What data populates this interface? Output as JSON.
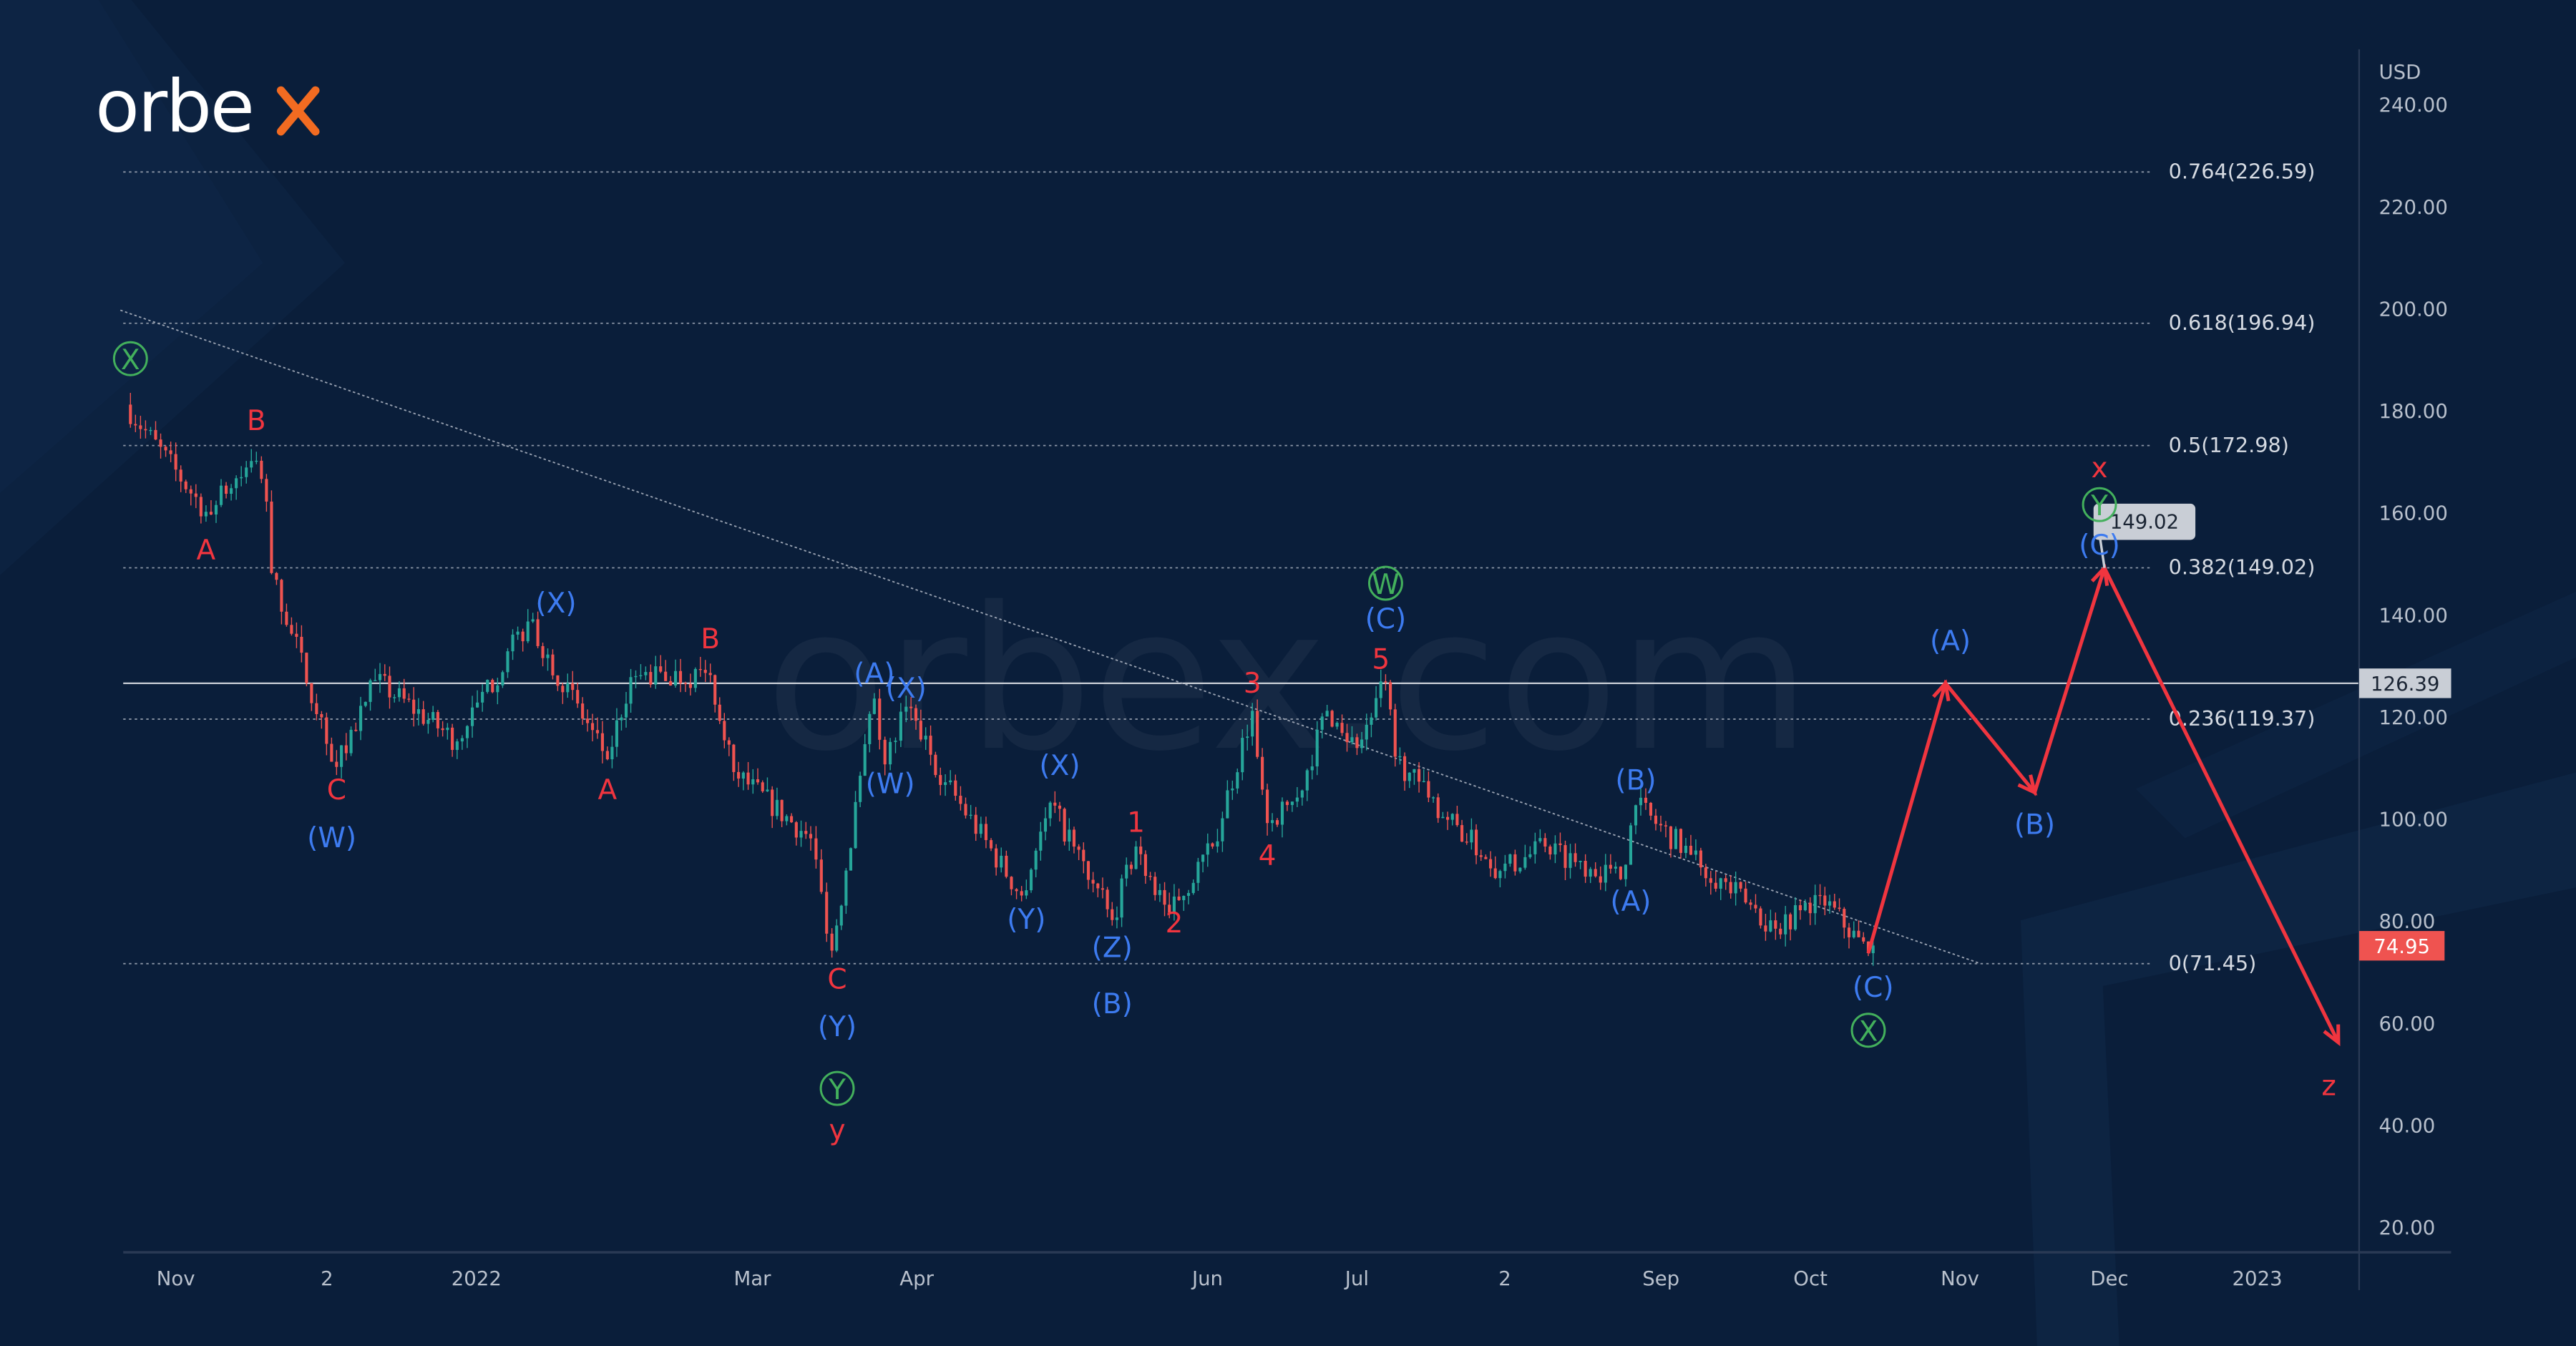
{
  "brand": {
    "logo_text": "orbex",
    "watermark": "orbex.com",
    "accent": "#f26b21"
  },
  "colors": {
    "background": "#0a1e3a",
    "red": "#f0353f",
    "blue": "#3d7bf0",
    "green": "#43b05c",
    "candle_up": "#26a69a",
    "candle_down": "#ef5350",
    "forecast": "#f0353f"
  },
  "chart_data": {
    "type": "candlestick",
    "currency_label": "USD",
    "ylim": [
      10,
      250
    ],
    "y_ticks": [
      "240.00",
      "220.00",
      "200.00",
      "180.00",
      "160.00",
      "140.00",
      "120.00",
      "100.00",
      "80.00",
      "60.00",
      "40.00",
      "20.00"
    ],
    "x_ticks": [
      {
        "label": "Nov",
        "date": "2021-11-01"
      },
      {
        "label": "2",
        "date": "2021-12-01"
      },
      {
        "label": "2022",
        "date": "2022-01-01"
      },
      {
        "label": "Mar",
        "date": "2022-03-01"
      },
      {
        "label": "Apr",
        "date": "2022-04-01"
      },
      {
        "label": "Jun",
        "date": "2022-06-01"
      },
      {
        "label": "Jul",
        "date": "2022-07-01"
      },
      {
        "label": "2",
        "date": "2022-08-01"
      },
      {
        "label": "Sep",
        "date": "2022-09-01"
      },
      {
        "label": "Oct",
        "date": "2022-10-01"
      },
      {
        "label": "Nov",
        "date": "2022-11-01"
      },
      {
        "label": "Dec",
        "date": "2022-12-01"
      },
      {
        "label": "2023",
        "date": "2023-01-01"
      }
    ],
    "price_pivots": [
      [
        "2021-10-22",
        181
      ],
      [
        "2021-11-07",
        160
      ],
      [
        "2021-11-17",
        170
      ],
      [
        "2021-11-19",
        162
      ],
      [
        "2021-11-20",
        148
      ],
      [
        "2021-12-03",
        110
      ],
      [
        "2021-12-11",
        127
      ],
      [
        "2021-12-28",
        115
      ],
      [
        "2022-01-12",
        138.5
      ],
      [
        "2022-01-29",
        111.5
      ],
      [
        "2022-02-03",
        127.6
      ],
      [
        "2022-02-20",
        128
      ],
      [
        "2022-02-25",
        109
      ],
      [
        "2022-03-12",
        96
      ],
      [
        "2022-03-16",
        74
      ],
      [
        "2022-03-24",
        123.4
      ],
      [
        "2022-03-26",
        110.5
      ],
      [
        "2022-03-30",
        121.8
      ],
      [
        "2022-04-07",
        107
      ],
      [
        "2022-04-23",
        84.8
      ],
      [
        "2022-04-29",
        103
      ],
      [
        "2022-05-12",
        80
      ],
      [
        "2022-05-17",
        94.4
      ],
      [
        "2022-05-24",
        81.5
      ],
      [
        "2022-06-02",
        94.4
      ],
      [
        "2022-06-10",
        121
      ],
      [
        "2022-06-13",
        99
      ],
      [
        "2022-06-19",
        104
      ],
      [
        "2022-06-25",
        121
      ],
      [
        "2022-07-01",
        113.7
      ],
      [
        "2022-07-07",
        126.6
      ],
      [
        "2022-07-09",
        112
      ],
      [
        "2022-07-16",
        104
      ],
      [
        "2022-07-31",
        89.6
      ],
      [
        "2022-08-09",
        94.4
      ],
      [
        "2022-08-24",
        88
      ],
      [
        "2022-08-27",
        102.5
      ],
      [
        "2022-09-07",
        92.8
      ],
      [
        "2022-09-24",
        78.3
      ],
      [
        "2022-10-03",
        84.8
      ],
      [
        "2022-10-13",
        73.5
      ],
      [
        "2022-10-14",
        75
      ]
    ],
    "fib_levels": [
      {
        "label": "0.764(226.59)",
        "value": 226.59
      },
      {
        "label": "0.618(196.94)",
        "value": 196.94
      },
      {
        "label": "0.5(172.98)",
        "value": 172.98
      },
      {
        "label": "0.382(149.02)",
        "value": 149.02
      },
      {
        "label": "0.236(119.37)",
        "value": 119.37
      },
      {
        "label": "0(71.45)",
        "value": 71.45
      }
    ],
    "horizontal_line": {
      "value": 126.39,
      "label": "126.39"
    },
    "current_price": {
      "value": 74.95,
      "label": "74.95"
    },
    "target_label": {
      "value": 149.02,
      "label": "149.02",
      "date": "2022-12-08"
    },
    "trendline": [
      [
        "2021-10-21",
        199.5
      ],
      [
        "2022-11-05",
        71.5
      ]
    ],
    "forecast_path": [
      [
        "2022-10-13",
        73.5
      ],
      [
        "2022-10-29",
        126.4
      ],
      [
        "2022-11-16",
        105
      ],
      [
        "2022-11-30",
        149
      ],
      [
        "2023-01-18",
        56
      ]
    ],
    "wave_labels": [
      {
        "text": "X",
        "style": "green",
        "date": "2021-10-23",
        "price": 190
      },
      {
        "text": "B",
        "style": "red",
        "date": "2021-11-17",
        "price": 177.8
      },
      {
        "text": "A",
        "style": "red",
        "date": "2021-11-07",
        "price": 152.4
      },
      {
        "text": "C",
        "style": "red",
        "date": "2021-12-03",
        "price": 105.4
      },
      {
        "text": "(W)",
        "style": "blue",
        "date": "2021-12-02",
        "price": 96
      },
      {
        "text": "(X)",
        "style": "blue",
        "date": "2022-01-18",
        "price": 142
      },
      {
        "text": "A",
        "style": "red",
        "date": "2022-01-29",
        "price": 105.4
      },
      {
        "text": "B",
        "style": "red",
        "date": "2022-02-20",
        "price": 135
      },
      {
        "text": "(A)",
        "style": "blue",
        "date": "2022-03-24",
        "price": 128.2
      },
      {
        "text": "(X)",
        "style": "blue",
        "date": "2022-03-30",
        "price": 125.3
      },
      {
        "text": "(W)",
        "style": "blue",
        "date": "2022-03-27",
        "price": 106.6
      },
      {
        "text": "C",
        "style": "red",
        "date": "2022-03-17",
        "price": 68.3
      },
      {
        "text": "(Y)",
        "style": "blue",
        "date": "2022-03-17",
        "price": 59
      },
      {
        "text": "Y",
        "style": "green",
        "date": "2022-03-17",
        "price": 47
      },
      {
        "text": "y",
        "style": "red",
        "date": "2022-03-17",
        "price": 38.7
      },
      {
        "text": "(X)",
        "style": "blue",
        "date": "2022-05-01",
        "price": 110.2
      },
      {
        "text": "(Y)",
        "style": "blue",
        "date": "2022-04-24",
        "price": 80
      },
      {
        "text": "(Z)",
        "style": "blue",
        "date": "2022-05-12",
        "price": 74.5
      },
      {
        "text": "(B)",
        "style": "blue",
        "date": "2022-05-12",
        "price": 63.5
      },
      {
        "text": "1",
        "style": "red",
        "date": "2022-05-17",
        "price": 99
      },
      {
        "text": "2",
        "style": "red",
        "date": "2022-05-25",
        "price": 79.3
      },
      {
        "text": "3",
        "style": "red",
        "date": "2022-06-10",
        "price": 126.3
      },
      {
        "text": "4",
        "style": "red",
        "date": "2022-06-13",
        "price": 92.5
      },
      {
        "text": "5",
        "style": "red",
        "date": "2022-07-06",
        "price": 131
      },
      {
        "text": "(C)",
        "style": "blue",
        "date": "2022-07-07",
        "price": 138.9
      },
      {
        "text": "W",
        "style": "green",
        "date": "2022-07-07",
        "price": 146
      },
      {
        "text": "(B)",
        "style": "blue",
        "date": "2022-08-27",
        "price": 107.3
      },
      {
        "text": "(A)",
        "style": "blue",
        "date": "2022-08-26",
        "price": 83.5
      },
      {
        "text": "(C)",
        "style": "blue",
        "date": "2022-10-14",
        "price": 66.7
      },
      {
        "text": "X",
        "style": "green",
        "date": "2022-10-13",
        "price": 58.4
      },
      {
        "text": "(A)",
        "style": "blue",
        "date": "2022-10-30",
        "price": 134.6
      },
      {
        "text": "(B)",
        "style": "blue",
        "date": "2022-11-16",
        "price": 98.6
      },
      {
        "text": "x",
        "style": "red",
        "date": "2022-11-29",
        "price": 168.5
      },
      {
        "text": "Y",
        "style": "green",
        "date": "2022-11-29",
        "price": 161.4
      },
      {
        "text": "(C)",
        "style": "blue",
        "date": "2022-11-29",
        "price": 153.4
      },
      {
        "text": "z",
        "style": "red",
        "date": "2023-01-16",
        "price": 47.4
      }
    ]
  }
}
